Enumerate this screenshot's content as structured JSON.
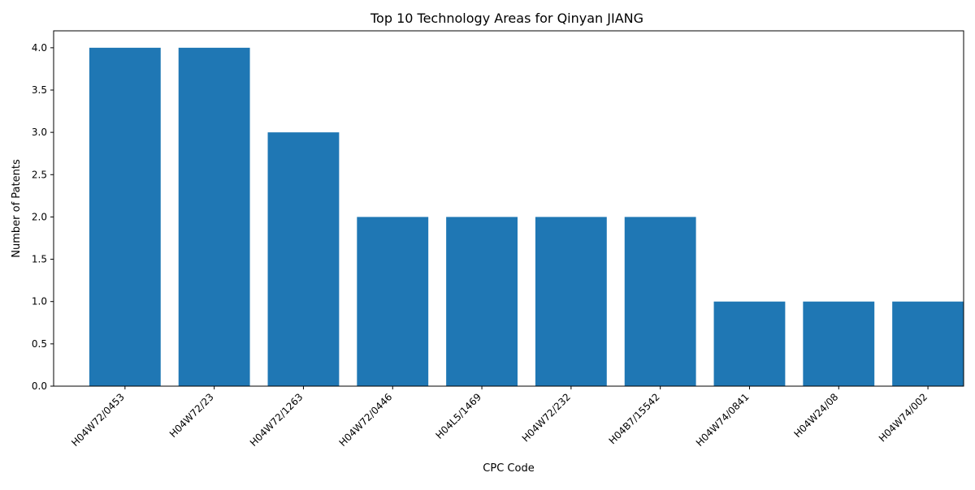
{
  "chart_data": {
    "type": "bar",
    "title": "Top 10 Technology Areas for Qinyan JIANG",
    "xlabel": "CPC Code",
    "ylabel": "Number of Patents",
    "categories": [
      "H04W72/0453",
      "H04W72/23",
      "H04W72/1263",
      "H04W72/0446",
      "H04L5/1469",
      "H04W72/232",
      "H04B7/15542",
      "H04W74/0841",
      "H04W24/08",
      "H04W74/002"
    ],
    "values": [
      4,
      4,
      3,
      2,
      2,
      2,
      2,
      1,
      1,
      1
    ],
    "ylim": [
      0,
      4.2
    ],
    "yticks": [
      "0.0",
      "0.5",
      "1.0",
      "1.5",
      "2.0",
      "2.5",
      "3.0",
      "3.5",
      "4.0"
    ],
    "bar_color": "#1f77b4",
    "grid": false,
    "legend": "none"
  }
}
